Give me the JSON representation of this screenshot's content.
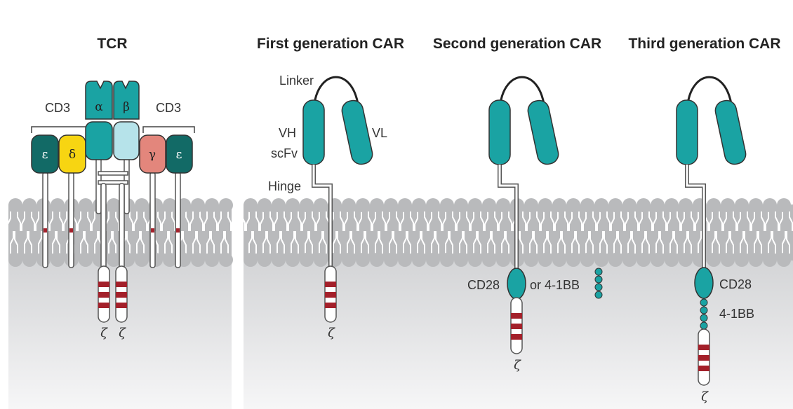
{
  "panels": {
    "tcr": {
      "title": "TCR",
      "cd3_left": "CD3",
      "cd3_right": "CD3",
      "chain_alpha": "α",
      "chain_beta": "β",
      "chain_epsilon_left": "ε",
      "chain_delta": "δ",
      "chain_gamma": "γ",
      "chain_epsilon_right": "ε",
      "zeta_left": "ζ",
      "zeta_right": "ζ"
    },
    "first": {
      "title": "First generation CAR",
      "linker": "Linker",
      "vh": "VH",
      "vl": "VL",
      "scfv": "scFv",
      "hinge": "Hinge",
      "zeta": "ζ"
    },
    "second": {
      "title": "Second generation CAR",
      "cd28_label": "CD28",
      "or_41bb_label": "or 4-1BB",
      "zeta": "ζ"
    },
    "third": {
      "title": "Third generation CAR",
      "cd28_label": "CD28",
      "label_41bb": "4-1BB",
      "zeta": "ζ"
    }
  },
  "colors": {
    "teal": "#1aa3a3",
    "dark_teal": "#126a66",
    "light_teal": "#b6e3ea",
    "yellow": "#f7d512",
    "salmon": "#e3867c",
    "red_band": "#a3202a",
    "membrane": "#b9babc",
    "cytoplasm": "#d8d9db"
  }
}
